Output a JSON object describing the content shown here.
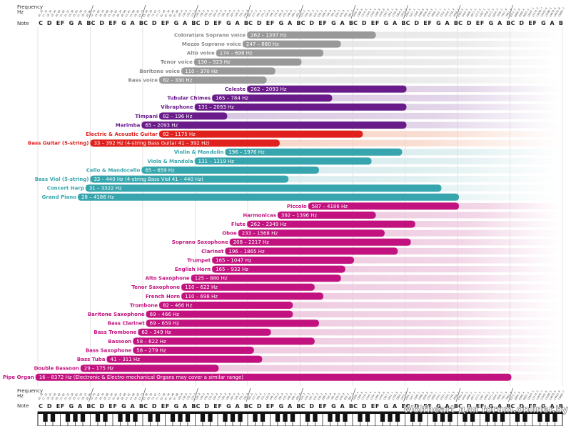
{
  "chart_data": {
    "type": "bar",
    "orientation": "horizontal-range",
    "scale": "log2",
    "title": "",
    "axis": {
      "top_labels": {
        "frequency": "Frequency\nHz",
        "note": "Note"
      },
      "bottom_labels": {
        "frequency": "Frequency\nHz",
        "note": "Note"
      },
      "octaves": 10,
      "notes": [
        "C",
        "D",
        "E",
        "F",
        "G",
        "A",
        "B"
      ],
      "xlim_hz": [
        16.35,
        31609
      ]
    },
    "colors": {
      "voice": "#999999",
      "percussion": "#6a1b8a",
      "guitar": "#e0201c",
      "strings": "#37a5ad",
      "winds": "#c2127f",
      "grid": "#d8d8d8"
    },
    "fade_colors": {
      "voice": "#e4e4e4",
      "percussion": "#d7c4e0",
      "guitar": "#f7cfbf",
      "strings": "#d3e9eb",
      "winds": "#ecc4dc"
    },
    "series": [
      {
        "name": "Coloratura Soprano voice",
        "range_label": "262 – 1397 Hz",
        "low": 262,
        "high": 1397,
        "group": "voice"
      },
      {
        "name": "Mezzo Soprano voice",
        "range_label": "247 – 880 Hz",
        "low": 247,
        "high": 880,
        "group": "voice"
      },
      {
        "name": "Alto voice",
        "range_label": "174 – 698 Hz",
        "low": 174,
        "high": 698,
        "group": "voice"
      },
      {
        "name": "Tenor voice",
        "range_label": "130 – 523 Hz",
        "low": 130,
        "high": 523,
        "group": "voice"
      },
      {
        "name": "Baritone voice",
        "range_label": "110 – 370 Hz",
        "low": 110,
        "high": 370,
        "group": "voice"
      },
      {
        "name": "Bass voice",
        "range_label": "82 – 330 Hz",
        "low": 82,
        "high": 330,
        "group": "voice"
      },
      {
        "name": "Celeste",
        "range_label": "262 – 2093 Hz",
        "low": 262,
        "high": 2093,
        "group": "percussion"
      },
      {
        "name": "Tubular Chimes",
        "range_label": "165 – 784 Hz",
        "low": 165,
        "high": 784,
        "group": "percussion"
      },
      {
        "name": "Vibraphone",
        "range_label": "131 – 2093 Hz",
        "low": 131,
        "high": 2093,
        "group": "percussion"
      },
      {
        "name": "Timpani",
        "range_label": "82 – 196 Hz",
        "low": 82,
        "high": 196,
        "group": "percussion"
      },
      {
        "name": "Marimba",
        "range_label": "65 – 2093 Hz",
        "low": 65,
        "high": 2093,
        "group": "percussion"
      },
      {
        "name": "Electric & Acoustic Guitar",
        "range_label": "82 – 1175 Hz",
        "low": 82,
        "high": 1175,
        "group": "guitar"
      },
      {
        "name": "Bass Guitar (5-string)",
        "range_label": "33 – 392 Hz    (4-string Bass Guitar 41 – 392 Hz)",
        "low": 33,
        "high": 392,
        "group": "guitar"
      },
      {
        "name": "Violin & Mandolin",
        "range_label": "196 – 1976 Hz",
        "low": 196,
        "high": 1976,
        "group": "strings"
      },
      {
        "name": "Viola & Mandola",
        "range_label": "131 – 1319 Hz",
        "low": 131,
        "high": 1319,
        "group": "strings"
      },
      {
        "name": "Cello & Mandocello",
        "range_label": "65 – 659 Hz",
        "low": 65,
        "high": 659,
        "group": "strings"
      },
      {
        "name": "Bass Viol (5-string)",
        "range_label": "33 – 440 Hz  (4-string Bass Viol 41 – 440 Hz)",
        "low": 33,
        "high": 440,
        "group": "strings"
      },
      {
        "name": "Concert Harp",
        "range_label": "31 – 3322 Hz",
        "low": 31,
        "high": 3322,
        "group": "strings"
      },
      {
        "name": "Grand Piano",
        "range_label": "28 – 4186 Hz",
        "low": 28,
        "high": 4186,
        "group": "strings"
      },
      {
        "name": "Piccolo",
        "range_label": "587 – 4186 Hz",
        "low": 587,
        "high": 4186,
        "group": "winds"
      },
      {
        "name": "Harmonicas",
        "range_label": "392 – 1396 Hz",
        "low": 392,
        "high": 1396,
        "group": "winds"
      },
      {
        "name": "Flute",
        "range_label": "262 – 2349 Hz",
        "low": 262,
        "high": 2349,
        "group": "winds"
      },
      {
        "name": "Oboe",
        "range_label": "233 – 1568 Hz",
        "low": 233,
        "high": 1568,
        "group": "winds"
      },
      {
        "name": "Soprano Saxophone",
        "range_label": "208 – 2217 Hz",
        "low": 208,
        "high": 2217,
        "group": "winds"
      },
      {
        "name": "Clarinet",
        "range_label": "196 – 1865 Hz",
        "low": 196,
        "high": 1865,
        "group": "winds"
      },
      {
        "name": "Trumpet",
        "range_label": "165 – 1047 Hz",
        "low": 165,
        "high": 1047,
        "group": "winds"
      },
      {
        "name": "English Horn",
        "range_label": "165 – 932 Hz",
        "low": 165,
        "high": 932,
        "group": "winds"
      },
      {
        "name": "Alto Saxophone",
        "range_label": "125 – 880 Hz",
        "low": 125,
        "high": 880,
        "group": "winds"
      },
      {
        "name": "Tenor Saxophone",
        "range_label": "110 – 622 Hz",
        "low": 110,
        "high": 622,
        "group": "winds"
      },
      {
        "name": "French Horn",
        "range_label": "110 – 698 Hz",
        "low": 110,
        "high": 698,
        "group": "winds"
      },
      {
        "name": "Trombone",
        "range_label": "82 – 466 Hz",
        "low": 82,
        "high": 466,
        "group": "winds"
      },
      {
        "name": "Baritone Saxophone",
        "range_label": "69 – 466 Hz",
        "low": 69,
        "high": 466,
        "group": "winds"
      },
      {
        "name": "Bass Clarinet",
        "range_label": "69 – 659 Hz",
        "low": 69,
        "high": 659,
        "group": "winds"
      },
      {
        "name": "Bass Trombone",
        "range_label": "62 – 349 Hz",
        "low": 62,
        "high": 349,
        "group": "winds"
      },
      {
        "name": "Bassoon",
        "range_label": "58 – 622 Hz",
        "low": 58,
        "high": 622,
        "group": "winds"
      },
      {
        "name": "Bass Saxophone",
        "range_label": "58 – 279 Hz",
        "low": 58,
        "high": 279,
        "group": "winds"
      },
      {
        "name": "Bass Tuba",
        "range_label": "41 – 311 Hz",
        "low": 41,
        "high": 311,
        "group": "winds"
      },
      {
        "name": "Double Bassoon",
        "range_label": "29 – 175 Hz",
        "low": 29,
        "high": 175,
        "group": "winds"
      },
      {
        "name": "Pipe Organ",
        "range_label": "16 – 8372 Hz    (Electronic & Electro-mechanical Organs may cover a similar range)",
        "low": 16,
        "high": 8372,
        "group": "winds"
      }
    ]
  },
  "watermark": "Wolfheart для forum.onliner.by"
}
